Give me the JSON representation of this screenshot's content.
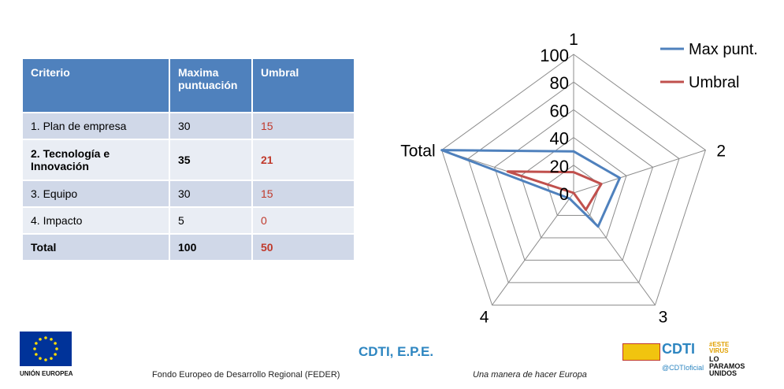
{
  "table": {
    "headers": [
      "Criterio",
      "Maxima puntuación",
      "Umbral"
    ],
    "rows": [
      {
        "criterio": "1. Plan de empresa",
        "max": "30",
        "umbral": "15",
        "bold": false
      },
      {
        "criterio": "2. Tecnología e Innovación",
        "max": "35",
        "umbral": "21",
        "bold": true
      },
      {
        "criterio": "3. Equipo",
        "max": "30",
        "umbral": "15",
        "bold": false
      },
      {
        "criterio": "4. Impacto",
        "max": "5",
        "umbral": "0",
        "bold": false
      },
      {
        "criterio": "Total",
        "max": "100",
        "umbral": "50",
        "bold": true
      }
    ]
  },
  "chart_data": {
    "type": "radar",
    "axes": [
      "1",
      "2",
      "3",
      "4",
      "Total"
    ],
    "radial_ticks": [
      "0",
      "20",
      "40",
      "60",
      "80",
      "100"
    ],
    "rlim": [
      0,
      100
    ],
    "series": [
      {
        "name": "Max punt.",
        "values": [
          30,
          35,
          30,
          5,
          100
        ],
        "color": "#4f81bd"
      },
      {
        "name": "Umbral",
        "values": [
          15,
          21,
          15,
          0,
          50
        ],
        "color": "#c0504d"
      }
    ],
    "legend_position": "top-right"
  },
  "footer": {
    "eu_label": "UNIÓN EUROPEA",
    "center_title": "CDTI, E.P.E.",
    "feder_text": "Fondo Europeo de Desarrollo Regional (FEDER)",
    "motto": "Una manera de hacer Europa",
    "cdti_logo": "CDTI",
    "handle": "@CDTIoficial",
    "hashtag_line1": "#ESTE",
    "hashtag_line2": "VIRUS",
    "slogan_line1": "LO",
    "slogan_line2": "PARAMOS",
    "slogan_line3": "UNIDOS"
  }
}
